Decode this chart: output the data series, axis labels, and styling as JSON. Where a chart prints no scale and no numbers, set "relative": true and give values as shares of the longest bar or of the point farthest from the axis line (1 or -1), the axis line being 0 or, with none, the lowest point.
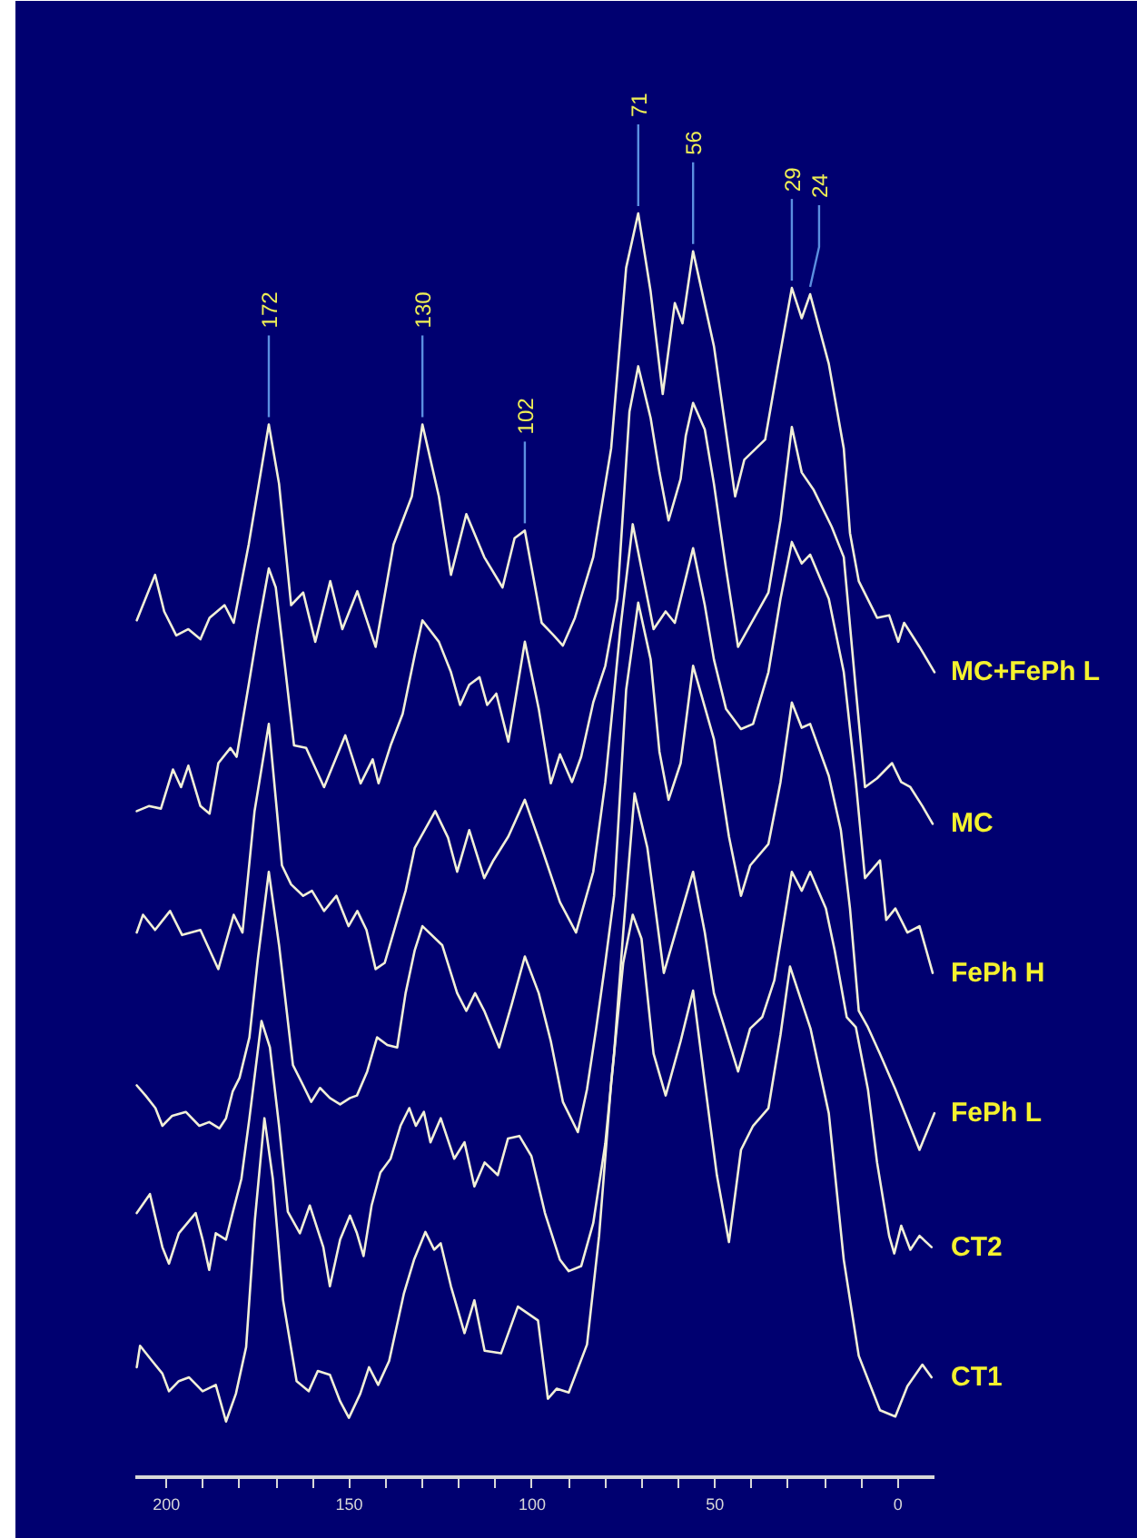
{
  "chart_data": {
    "type": "line",
    "relative": true,
    "xlim": [
      208.5,
      -10
    ],
    "xticks": [
      200,
      {
        "value": 190,
        "label": null
      },
      {
        "value": 180,
        "label": null
      },
      {
        "value": 170,
        "label": null
      },
      {
        "value": 160,
        "label": null
      },
      150,
      {
        "value": 140,
        "label": null
      },
      {
        "value": 130,
        "label": null
      },
      {
        "value": 120,
        "label": null
      },
      {
        "value": 110,
        "label": null
      },
      100,
      {
        "value": 90,
        "label": null
      },
      {
        "value": 80,
        "label": null
      },
      {
        "value": 70,
        "label": null
      },
      {
        "value": 60,
        "label": null
      },
      50,
      {
        "value": 40,
        "label": null
      },
      {
        "value": 30,
        "label": null
      },
      {
        "value": 20,
        "label": null
      },
      {
        "value": 10,
        "label": null
      },
      0
    ],
    "series": [
      {
        "name": "MC+FePh L",
        "color": "#f2f0d8",
        "x": [
          208.1,
          203.1,
          200.6,
          197.3,
          194.0,
          190.7,
          188.2,
          184.1,
          181.6,
          177.5,
          172,
          169.2,
          165.9,
          162.6,
          159.3,
          155.2,
          151.9,
          147.8,
          142.8,
          137.9,
          132.9,
          130,
          125.5,
          122.2,
          118.0,
          113.1,
          108.1,
          104.8,
          102,
          97.4,
          94.1,
          91.6,
          88.3,
          83.3,
          78.4,
          74.3,
          71,
          67.6,
          64.3,
          61.0,
          58.9,
          56,
          50.3,
          44.5,
          42.0,
          36.3,
          33.0,
          29,
          26.3,
          24,
          18.9,
          14.8,
          13.1,
          10.7,
          5.7,
          2.4,
          -0.1,
          -1.7,
          -5.9,
          -10.0
        ],
        "values": [
          0.678,
          0.714,
          0.685,
          0.666,
          0.671,
          0.663,
          0.68,
          0.69,
          0.676,
          0.738,
          0.833,
          0.786,
          0.69,
          0.7,
          0.661,
          0.709,
          0.671,
          0.701,
          0.657,
          0.738,
          0.776,
          0.833,
          0.776,
          0.714,
          0.762,
          0.728,
          0.704,
          0.743,
          0.749,
          0.676,
          0.666,
          0.658,
          0.68,
          0.728,
          0.814,
          0.957,
          1.0,
          0.938,
          0.857,
          0.929,
          0.913,
          0.97,
          0.895,
          0.776,
          0.805,
          0.821,
          0.876,
          0.941,
          0.917,
          0.936,
          0.881,
          0.814,
          0.747,
          0.709,
          0.68,
          0.682,
          0.661,
          0.676,
          0.657,
          0.637
        ]
      },
      {
        "name": "MC",
        "color": "#f2f0d8",
        "x": [
          208.1,
          204.8,
          201.5,
          198.2,
          196.0,
          194.0,
          190.7,
          188.2,
          185.8,
          182.5,
          180.8,
          177.5,
          175.0,
          172,
          170.1,
          167.6,
          165.1,
          161.8,
          156.9,
          151.1,
          146.9,
          143.6,
          142.0,
          138.7,
          135.4,
          132,
          130,
          125.5,
          122.2,
          119.7,
          117.2,
          114.4,
          112.3,
          109.8,
          106.5,
          102,
          98.2,
          94.9,
          92.4,
          89.1,
          86.6,
          83.3,
          80.0,
          76.7,
          73.4,
          71,
          67.6,
          65.2,
          62.7,
          59.4,
          58,
          56,
          52.8,
          50.3,
          47.0,
          43.7,
          35.4,
          32.1,
          29,
          26.3,
          23.0,
          18.1,
          14.8,
          11.5,
          9.0,
          5.7,
          1.6,
          -0.9,
          -3.4,
          -6.7,
          -9.5
        ],
        "values": [
          0.527,
          0.531,
          0.529,
          0.56,
          0.546,
          0.563,
          0.531,
          0.525,
          0.565,
          0.577,
          0.57,
          0.627,
          0.671,
          0.719,
          0.704,
          0.642,
          0.579,
          0.577,
          0.546,
          0.587,
          0.549,
          0.568,
          0.549,
          0.579,
          0.604,
          0.652,
          0.678,
          0.661,
          0.637,
          0.611,
          0.627,
          0.633,
          0.611,
          0.62,
          0.582,
          0.661,
          0.608,
          0.549,
          0.572,
          0.55,
          0.57,
          0.613,
          0.642,
          0.695,
          0.843,
          0.879,
          0.838,
          0.795,
          0.757,
          0.79,
          0.824,
          0.85,
          0.829,
          0.786,
          0.719,
          0.657,
          0.7,
          0.757,
          0.831,
          0.795,
          0.781,
          0.752,
          0.728,
          0.623,
          0.546,
          0.553,
          0.565,
          0.55,
          0.546,
          0.531,
          0.517
        ]
      },
      {
        "name": "FePh H",
        "color": "#f2f0d8",
        "x": [
          208.1,
          206.4,
          203.1,
          199.0,
          195.7,
          190.7,
          185.8,
          181.6,
          179.2,
          175.9,
          172,
          168.4,
          165.9,
          162.6,
          160.2,
          156.9,
          153.5,
          150.2,
          147.8,
          145.3,
          142.8,
          140.3,
          137.9,
          134.6,
          132.1,
          126.5,
          123.0,
          120.5,
          117.2,
          113.1,
          110.6,
          106.5,
          102,
          97.4,
          92.4,
          88.0,
          83.3,
          80.0,
          75.9,
          72.5,
          70.1,
          66.8,
          63.5,
          61.0,
          56,
          52.8,
          50.3,
          47.0,
          42.9,
          39.6,
          35.4,
          32.1,
          29,
          26.3,
          24,
          18.9,
          14.8,
          11.5,
          9.0,
          4.9,
          3.2,
          0.7,
          -2.6,
          -5.9,
          -9.5
        ],
        "values": [
          0.431,
          0.445,
          0.433,
          0.448,
          0.429,
          0.433,
          0.402,
          0.445,
          0.431,
          0.527,
          0.596,
          0.484,
          0.469,
          0.46,
          0.464,
          0.448,
          0.46,
          0.436,
          0.448,
          0.433,
          0.402,
          0.407,
          0.431,
          0.464,
          0.498,
          0.527,
          0.506,
          0.479,
          0.512,
          0.474,
          0.488,
          0.507,
          0.536,
          0.498,
          0.455,
          0.431,
          0.479,
          0.55,
          0.671,
          0.754,
          0.719,
          0.671,
          0.685,
          0.676,
          0.735,
          0.69,
          0.647,
          0.608,
          0.592,
          0.596,
          0.637,
          0.695,
          0.74,
          0.723,
          0.73,
          0.695,
          0.637,
          0.55,
          0.474,
          0.488,
          0.441,
          0.45,
          0.431,
          0.436,
          0.399
        ]
      },
      {
        "name": "FePh L",
        "color": "#f2f0d8",
        "x": [
          208.1,
          205.7,
          203.0,
          201.1,
          198.4,
          194.7,
          191.0,
          188.3,
          185.5,
          183.7,
          181.9,
          180.0,
          177.3,
          175.0,
          172,
          169.2,
          165.4,
          162.6,
          160.4,
          158.0,
          155.3,
          152.5,
          149.8,
          147.9,
          145.1,
          142.4,
          139.6,
          136.9,
          134.6,
          132.1,
          130,
          124.6,
          120.5,
          118.0,
          115.6,
          113.1,
          109.0,
          105.6,
          102,
          98.2,
          94.9,
          91.6,
          87.5,
          85.0,
          82.5,
          80.0,
          77.6,
          74.3,
          71,
          67.6,
          65.2,
          62.7,
          59.4,
          56,
          50.3,
          46.2,
          42.9,
          40.4,
          35.4,
          32.1,
          29,
          26.3,
          24,
          18.9,
          15.6,
          13.1,
          10.7,
          8.2,
          4.9,
          0.7,
          -5.9,
          -10.0
        ],
        "values": [
          0.31,
          0.302,
          0.292,
          0.278,
          0.286,
          0.289,
          0.278,
          0.281,
          0.276,
          0.284,
          0.305,
          0.316,
          0.348,
          0.41,
          0.479,
          0.421,
          0.326,
          0.31,
          0.297,
          0.308,
          0.3,
          0.295,
          0.3,
          0.302,
          0.321,
          0.348,
          0.342,
          0.34,
          0.383,
          0.417,
          0.436,
          0.421,
          0.383,
          0.369,
          0.383,
          0.369,
          0.34,
          0.374,
          0.412,
          0.383,
          0.345,
          0.297,
          0.273,
          0.307,
          0.355,
          0.407,
          0.46,
          0.623,
          0.692,
          0.647,
          0.574,
          0.536,
          0.565,
          0.642,
          0.584,
          0.507,
          0.46,
          0.484,
          0.501,
          0.55,
          0.613,
          0.593,
          0.596,
          0.555,
          0.512,
          0.45,
          0.369,
          0.356,
          0.335,
          0.307,
          0.259,
          0.288
        ]
      },
      {
        "name": "CT2",
        "color": "#f2f0d8",
        "x": [
          208.1,
          204.5,
          201.1,
          199.3,
          196.6,
          192.0,
          190.1,
          188.3,
          186.5,
          183.7,
          181.9,
          179.5,
          177.3,
          174,
          171.7,
          169.2,
          166.8,
          163.5,
          160.8,
          157.1,
          155.3,
          152.5,
          149.8,
          147.9,
          146.1,
          143.9,
          141.5,
          138.7,
          136.0,
          133.6,
          131.8,
          129.6,
          127.8,
          125.0,
          121.3,
          118.5,
          115.8,
          113.0,
          109.4,
          106.6,
          103.5,
          100.2,
          96.5,
          92.4,
          90.0,
          86.6,
          83.3,
          80.0,
          77.6,
          75.1,
          72,
          68.5,
          64,
          56,
          52.8,
          50.3,
          43.7,
          40.4,
          37.1,
          33.8,
          29,
          26.3,
          24,
          19.7,
          17.3,
          14.0,
          11.5,
          8.2,
          5.7,
          2.4,
          1.0,
          -0.9,
          -3.4,
          -5.9,
          -9.2
        ],
        "values": [
          0.209,
          0.224,
          0.182,
          0.169,
          0.193,
          0.209,
          0.188,
          0.164,
          0.193,
          0.188,
          0.209,
          0.236,
          0.284,
          0.361,
          0.34,
          0.278,
          0.21,
          0.193,
          0.215,
          0.182,
          0.151,
          0.188,
          0.207,
          0.193,
          0.175,
          0.215,
          0.241,
          0.252,
          0.278,
          0.292,
          0.278,
          0.289,
          0.265,
          0.284,
          0.252,
          0.265,
          0.23,
          0.249,
          0.239,
          0.268,
          0.27,
          0.254,
          0.209,
          0.172,
          0.163,
          0.167,
          0.201,
          0.264,
          0.335,
          0.431,
          0.541,
          0.498,
          0.399,
          0.479,
          0.431,
          0.383,
          0.321,
          0.355,
          0.364,
          0.393,
          0.479,
          0.464,
          0.479,
          0.45,
          0.417,
          0.364,
          0.356,
          0.307,
          0.249,
          0.191,
          0.177,
          0.199,
          0.18,
          0.191,
          0.182
        ]
      },
      {
        "name": "CT1",
        "color": "#f2f0d8",
        "x": [
          208.1,
          207.2,
          203.9,
          201.1,
          199.3,
          196.6,
          193.8,
          190.1,
          186.5,
          183.7,
          181.0,
          178.2,
          175.8,
          173.2,
          170.9,
          168.1,
          164.4,
          161.1,
          158.6,
          155.3,
          152.5,
          150.1,
          147.0,
          144.6,
          142.1,
          139.1,
          135.1,
          132.3,
          129.2,
          126.8,
          125.0,
          122.2,
          118.5,
          115.8,
          113.0,
          108.5,
          103.9,
          98.4,
          95.7,
          93.3,
          90.0,
          85.0,
          81.7,
          78.4,
          75.1,
          72.5,
          70.1,
          66.8,
          63.5,
          59.4,
          56,
          52.8,
          49.5,
          46.2,
          42.9,
          39.6,
          35.4,
          32.1,
          29.5,
          23.9,
          18.9,
          14.8,
          10.7,
          4.9,
          0.7,
          -2.6,
          -6.7,
          -9.2
        ],
        "values": [
          0.087,
          0.104,
          0.092,
          0.082,
          0.068,
          0.076,
          0.079,
          0.068,
          0.073,
          0.044,
          0.066,
          0.103,
          0.204,
          0.284,
          0.236,
          0.14,
          0.076,
          0.068,
          0.084,
          0.081,
          0.06,
          0.047,
          0.066,
          0.087,
          0.073,
          0.092,
          0.145,
          0.172,
          0.194,
          0.18,
          0.185,
          0.151,
          0.114,
          0.14,
          0.1,
          0.098,
          0.135,
          0.124,
          0.062,
          0.07,
          0.067,
          0.105,
          0.191,
          0.312,
          0.407,
          0.445,
          0.426,
          0.335,
          0.302,
          0.345,
          0.385,
          0.312,
          0.239,
          0.186,
          0.259,
          0.278,
          0.292,
          0.35,
          0.404,
          0.355,
          0.288,
          0.172,
          0.096,
          0.053,
          0.048,
          0.072,
          0.089,
          0.079
        ]
      }
    ],
    "annotations": [
      {
        "text": "172",
        "x": 172,
        "y": 0.833
      },
      {
        "text": "130",
        "x": 130,
        "y": 0.833
      },
      {
        "text": "102",
        "x": 102,
        "y": 0.749
      },
      {
        "text": "71",
        "x": 71,
        "y": 1.0
      },
      {
        "text": "56",
        "x": 56,
        "y": 0.97
      },
      {
        "text": "29",
        "x": 29,
        "y": 0.941
      },
      {
        "text": "24",
        "x": 24,
        "y": 0.936
      }
    ]
  }
}
